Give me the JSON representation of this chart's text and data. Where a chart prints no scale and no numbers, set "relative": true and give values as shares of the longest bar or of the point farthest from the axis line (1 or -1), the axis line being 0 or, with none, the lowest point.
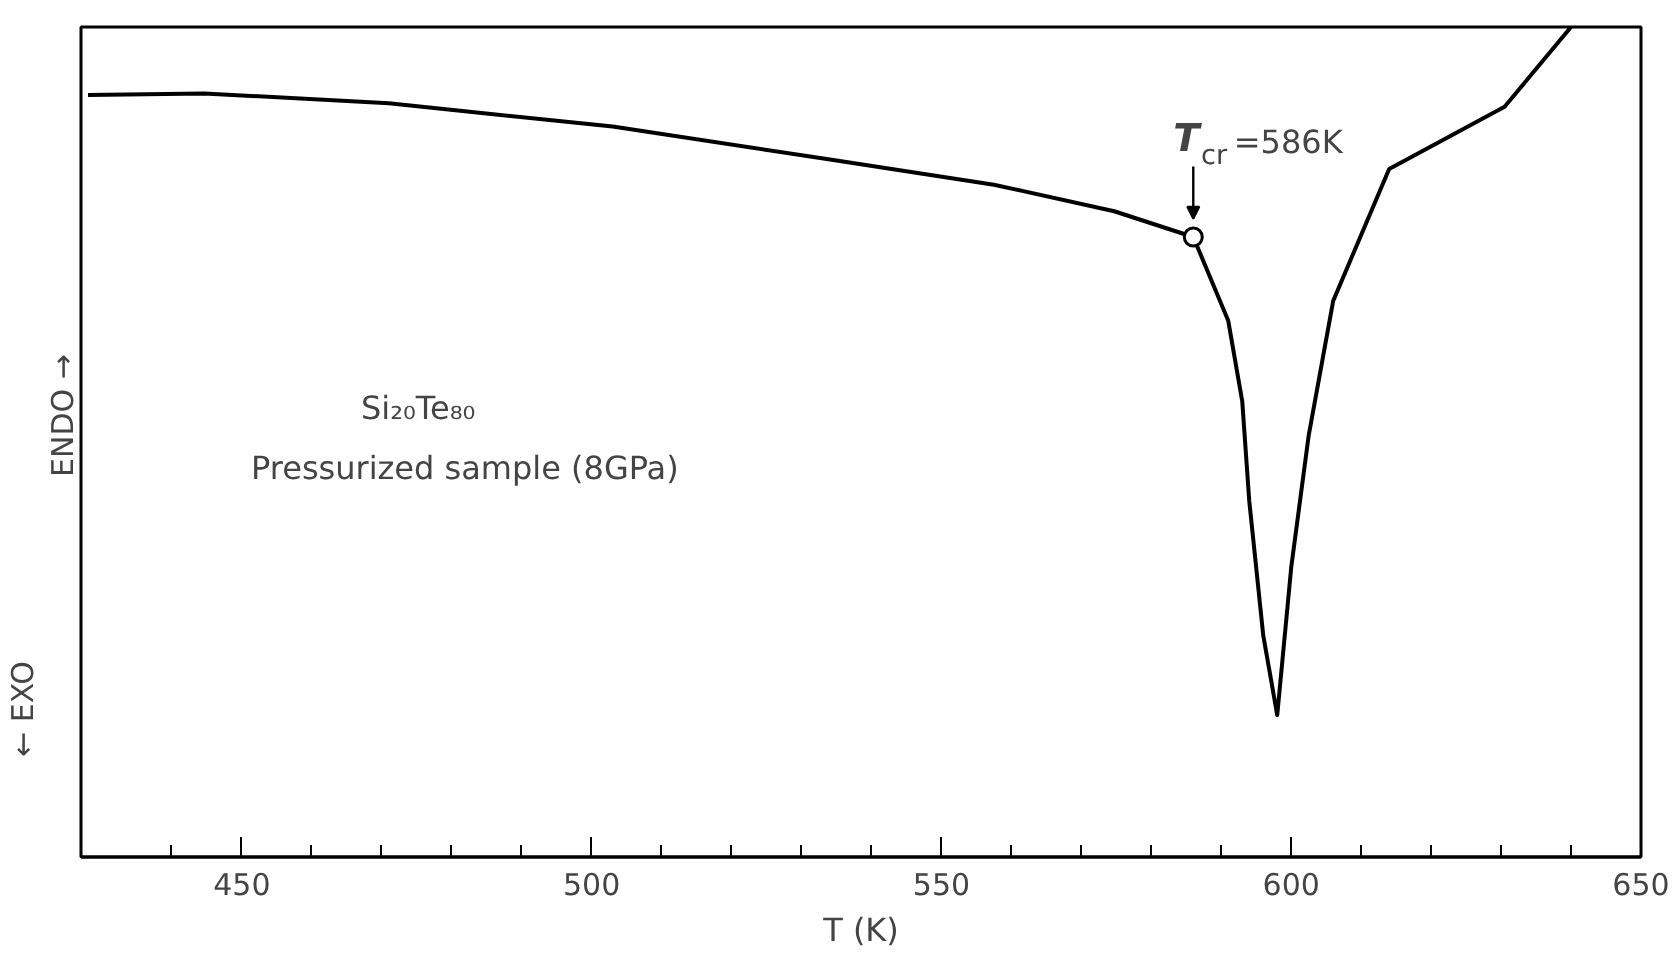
{
  "chart_data": {
    "type": "line",
    "relative": true,
    "xlabel": "T (K)",
    "xlim": [
      427,
      650
    ],
    "xticks": [
      450,
      500,
      550,
      600,
      650,
      {
        "value": 440,
        "label": null
      },
      {
        "value": 460,
        "label": null
      },
      {
        "value": 470,
        "label": null
      },
      {
        "value": 480,
        "label": null
      },
      {
        "value": 490,
        "label": null
      },
      {
        "value": 510,
        "label": null
      },
      {
        "value": 520,
        "label": null
      },
      {
        "value": 530,
        "label": null
      },
      {
        "value": 540,
        "label": null
      },
      {
        "value": 560,
        "label": null
      },
      {
        "value": 570,
        "label": null
      },
      {
        "value": 580,
        "label": null
      },
      {
        "value": 590,
        "label": null
      },
      {
        "value": 610,
        "label": null
      },
      {
        "value": 620,
        "label": null
      },
      {
        "value": 630,
        "label": null
      },
      {
        "value": 640,
        "label": null
      }
    ],
    "series": [
      {
        "color": "#000000",
        "x": [
          428,
          444.6,
          471,
          503,
          533.6,
          557.5,
          574.7,
          586,
          591,
          593,
          594,
          596,
          598,
          600,
          602.5,
          606,
          614,
          630.5,
          640
        ],
        "values": [
          0.918,
          0.92,
          0.908,
          0.88,
          0.841,
          0.81,
          0.778,
          0.747,
          0.646,
          0.549,
          0.429,
          0.267,
          0.171,
          0.349,
          0.508,
          0.67,
          0.829,
          0.904,
          1.0
        ]
      },
      {
        "type": "scatter",
        "marker": "circle",
        "color": "#000000",
        "x": [
          586
        ],
        "values": [
          0.747
        ]
      }
    ],
    "grid": false,
    "annotations": [
      {
        "text": "T$_{cr}$ =586K",
        "x": 586,
        "y": 0.747
      },
      "Si₂₀Te₈₀",
      "Pressurized sample (8GPa)",
      "ENDO →",
      "← EXO"
    ]
  }
}
